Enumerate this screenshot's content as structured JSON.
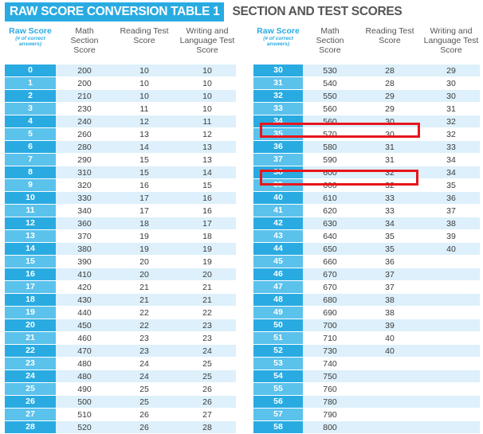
{
  "title": {
    "badge": "RAW SCORE CONVERSION TABLE 1",
    "rest": "SECTION AND TEST SCORES"
  },
  "headers": {
    "raw_score": "Raw Score",
    "raw_sub": "(# of correct answers)",
    "math": "Math Section Score",
    "reading": "Reading Test Score",
    "writing": "Writing and Language Test Score"
  },
  "left_rows": [
    [
      "0",
      "200",
      "10",
      "10"
    ],
    [
      "1",
      "200",
      "10",
      "10"
    ],
    [
      "2",
      "210",
      "10",
      "10"
    ],
    [
      "3",
      "230",
      "11",
      "10"
    ],
    [
      "4",
      "240",
      "12",
      "11"
    ],
    [
      "5",
      "260",
      "13",
      "12"
    ],
    [
      "6",
      "280",
      "14",
      "13"
    ],
    [
      "7",
      "290",
      "15",
      "13"
    ],
    [
      "8",
      "310",
      "15",
      "14"
    ],
    [
      "9",
      "320",
      "16",
      "15"
    ],
    [
      "10",
      "330",
      "17",
      "16"
    ],
    [
      "11",
      "340",
      "17",
      "16"
    ],
    [
      "12",
      "360",
      "18",
      "17"
    ],
    [
      "13",
      "370",
      "19",
      "18"
    ],
    [
      "14",
      "380",
      "19",
      "19"
    ],
    [
      "15",
      "390",
      "20",
      "19"
    ],
    [
      "16",
      "410",
      "20",
      "20"
    ],
    [
      "17",
      "420",
      "21",
      "21"
    ],
    [
      "18",
      "430",
      "21",
      "21"
    ],
    [
      "19",
      "440",
      "22",
      "22"
    ],
    [
      "20",
      "450",
      "22",
      "23"
    ],
    [
      "21",
      "460",
      "23",
      "23"
    ],
    [
      "22",
      "470",
      "23",
      "24"
    ],
    [
      "23",
      "480",
      "24",
      "25"
    ],
    [
      "24",
      "480",
      "24",
      "25"
    ],
    [
      "25",
      "490",
      "25",
      "26"
    ],
    [
      "26",
      "500",
      "25",
      "26"
    ],
    [
      "27",
      "510",
      "26",
      "27"
    ],
    [
      "28",
      "520",
      "26",
      "28"
    ]
  ],
  "right_rows": [
    [
      "30",
      "530",
      "28",
      "29"
    ],
    [
      "31",
      "540",
      "28",
      "30"
    ],
    [
      "32",
      "550",
      "29",
      "30"
    ],
    [
      "33",
      "560",
      "29",
      "31"
    ],
    [
      "34",
      "560",
      "30",
      "32"
    ],
    [
      "35",
      "570",
      "30",
      "32"
    ],
    [
      "36",
      "580",
      "31",
      "33"
    ],
    [
      "37",
      "590",
      "31",
      "34"
    ],
    [
      "38",
      "600",
      "32",
      "34"
    ],
    [
      "39",
      "600",
      "32",
      "35"
    ],
    [
      "40",
      "610",
      "33",
      "36"
    ],
    [
      "41",
      "620",
      "33",
      "37"
    ],
    [
      "42",
      "630",
      "34",
      "38"
    ],
    [
      "43",
      "640",
      "35",
      "39"
    ],
    [
      "44",
      "650",
      "35",
      "40"
    ],
    [
      "45",
      "660",
      "36",
      ""
    ],
    [
      "46",
      "670",
      "37",
      ""
    ],
    [
      "47",
      "670",
      "37",
      ""
    ],
    [
      "48",
      "680",
      "38",
      ""
    ],
    [
      "49",
      "690",
      "38",
      ""
    ],
    [
      "50",
      "700",
      "39",
      ""
    ],
    [
      "51",
      "710",
      "40",
      ""
    ],
    [
      "52",
      "730",
      "40",
      ""
    ],
    [
      "53",
      "740",
      "",
      ""
    ],
    [
      "54",
      "750",
      "",
      ""
    ],
    [
      "55",
      "760",
      "",
      ""
    ],
    [
      "56",
      "780",
      "",
      ""
    ],
    [
      "57",
      "790",
      "",
      ""
    ],
    [
      "58",
      "800",
      "",
      ""
    ]
  ],
  "colors": {
    "accent": "#29abe2",
    "row_tint": "#ddf0fb",
    "highlight": "#e8151b"
  }
}
